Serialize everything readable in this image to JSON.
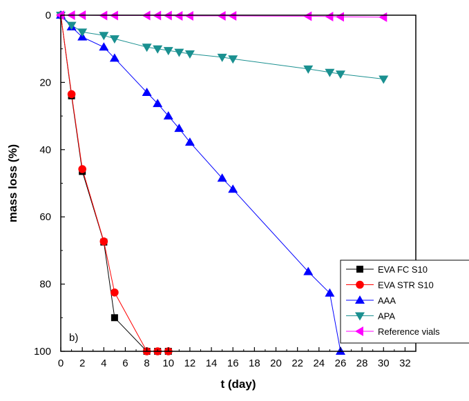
{
  "chart_data": {
    "type": "line",
    "xlabel": "t (day)",
    "ylabel": "mass loss (%)",
    "annotation": "b)",
    "xlim": [
      0,
      33
    ],
    "ylim": [
      0,
      100
    ],
    "y_inverted": true,
    "x_ticks": [
      0,
      2,
      4,
      6,
      8,
      10,
      12,
      14,
      16,
      18,
      20,
      22,
      24,
      26,
      28,
      30,
      32
    ],
    "y_ticks": [
      0,
      20,
      40,
      60,
      80,
      100
    ],
    "grid": false,
    "legend_position": "bottom-right",
    "series": [
      {
        "name": "EVA FC S10",
        "color": "#000000",
        "marker": "square",
        "x": [
          0,
          1,
          2,
          4,
          5,
          8,
          9,
          10
        ],
        "y": [
          0,
          24,
          46.5,
          67.5,
          90,
          100,
          100,
          100
        ]
      },
      {
        "name": "EVA STR S10",
        "color": "#ff0000",
        "marker": "circle",
        "x": [
          0,
          1,
          2,
          4,
          5,
          8,
          9,
          10
        ],
        "y": [
          0,
          23.5,
          45.8,
          67.3,
          82.5,
          100,
          100,
          100
        ]
      },
      {
        "name": "AAA",
        "color": "#0000ff",
        "marker": "triangle-up",
        "x": [
          0,
          1,
          2,
          4,
          5,
          8,
          9,
          10,
          11,
          12,
          15,
          16,
          23,
          25,
          26
        ],
        "y": [
          0,
          3.5,
          6.5,
          9.5,
          12.8,
          23,
          26.3,
          30,
          33.7,
          37.8,
          48.5,
          51.8,
          76.3,
          82.7,
          100
        ]
      },
      {
        "name": "APA",
        "color": "#1a9090",
        "marker": "triangle-down",
        "x": [
          0,
          1,
          2,
          4,
          5,
          8,
          9,
          10,
          11,
          12,
          15,
          16,
          23,
          25,
          26,
          30
        ],
        "y": [
          0,
          3,
          5,
          6,
          7,
          9.5,
          10,
          10.5,
          11,
          11.5,
          12.5,
          13,
          16,
          17,
          17.5,
          19
        ]
      },
      {
        "name": "Reference vials",
        "color": "#ff00ff",
        "marker": "triangle-left",
        "x": [
          0,
          1,
          2,
          4,
          5,
          8,
          9,
          10,
          11,
          12,
          15,
          16,
          23,
          25,
          26,
          30
        ],
        "y": [
          0,
          0,
          0,
          0.1,
          0.1,
          0.1,
          0.1,
          0.1,
          0.2,
          0.2,
          0.2,
          0.2,
          0.3,
          0.4,
          0.5,
          0.6
        ]
      }
    ]
  }
}
